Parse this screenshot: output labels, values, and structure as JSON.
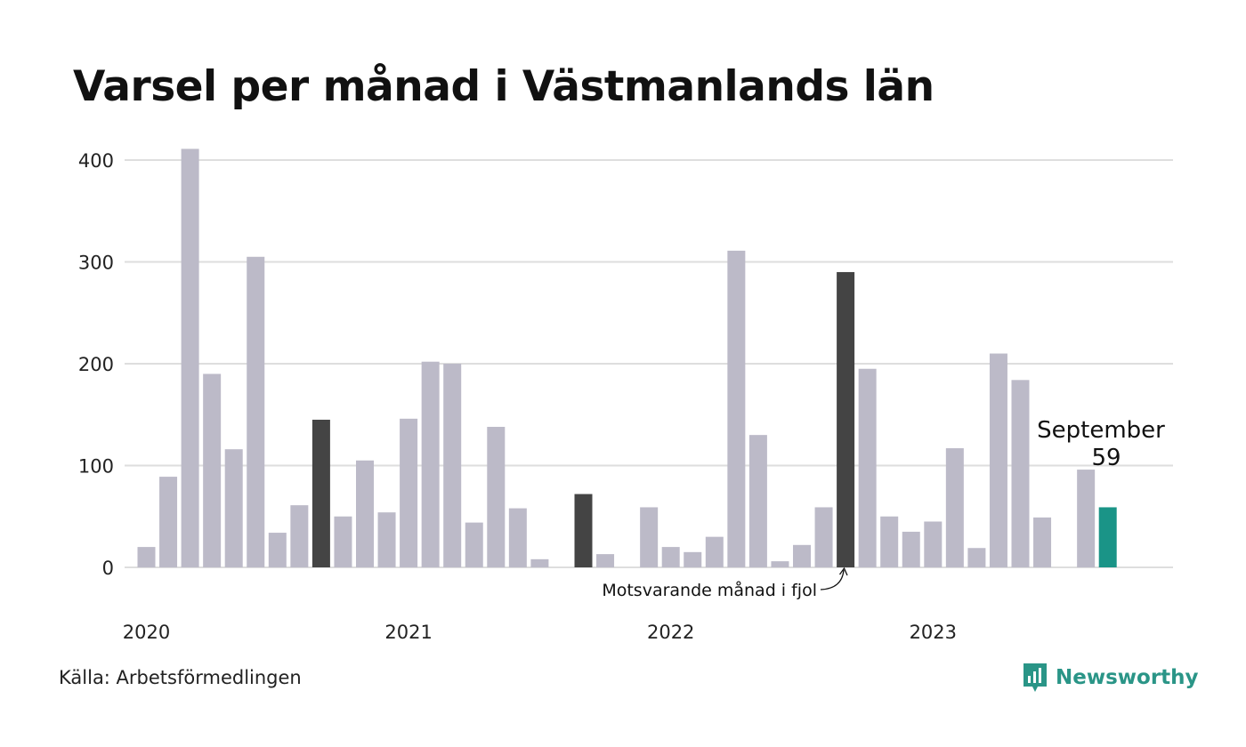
{
  "title": "Varsel per månad i Västmanlands län",
  "source": "Källa: Arbetsförmedlingen",
  "brand": {
    "name": "Newsworthy",
    "color": "#2a9587",
    "icon": "newsworthy-logo-icon"
  },
  "colors": {
    "bar": "#bcbac8",
    "previous_year": "#444444",
    "current": "#1a9487",
    "grid": "#dedede"
  },
  "annotations": {
    "previous_year_label": "Motsvarande månad i fjol",
    "current_month": "September",
    "current_value": "59"
  },
  "chart_data": {
    "type": "bar",
    "title": "Varsel per månad i Västmanlands län",
    "xlabel": "",
    "ylabel": "",
    "ylim": [
      0,
      420
    ],
    "yticks": [
      0,
      100,
      200,
      300,
      400
    ],
    "grid": true,
    "year_labels": [
      "2020",
      "2021",
      "2022",
      "2023"
    ],
    "categories": [
      "2020-01",
      "2020-02",
      "2020-03",
      "2020-04",
      "2020-05",
      "2020-06",
      "2020-07",
      "2020-08",
      "2020-09",
      "2020-10",
      "2020-11",
      "2020-12",
      "2021-01",
      "2021-02",
      "2021-03",
      "2021-04",
      "2021-05",
      "2021-06",
      "2021-07",
      "2021-08",
      "2021-09",
      "2021-10",
      "2021-11",
      "2021-12",
      "2022-01",
      "2022-02",
      "2022-03",
      "2022-04",
      "2022-05",
      "2022-06",
      "2022-07",
      "2022-08",
      "2022-09",
      "2022-10",
      "2022-11",
      "2022-12",
      "2023-01",
      "2023-02",
      "2023-03",
      "2023-04",
      "2023-05",
      "2023-06",
      "2023-07",
      "2023-08",
      "2023-09"
    ],
    "values": [
      20,
      89,
      411,
      190,
      116,
      305,
      34,
      61,
      145,
      50,
      105,
      54,
      146,
      202,
      200,
      44,
      138,
      58,
      8,
      0,
      72,
      13,
      0,
      59,
      20,
      15,
      30,
      311,
      130,
      6,
      22,
      59,
      290,
      195,
      50,
      35,
      45,
      117,
      19,
      210,
      184,
      49,
      0,
      96,
      59
    ],
    "previous_year_highlight": [
      "2020-09",
      "2021-09",
      "2022-09"
    ],
    "current": "2023-09"
  }
}
